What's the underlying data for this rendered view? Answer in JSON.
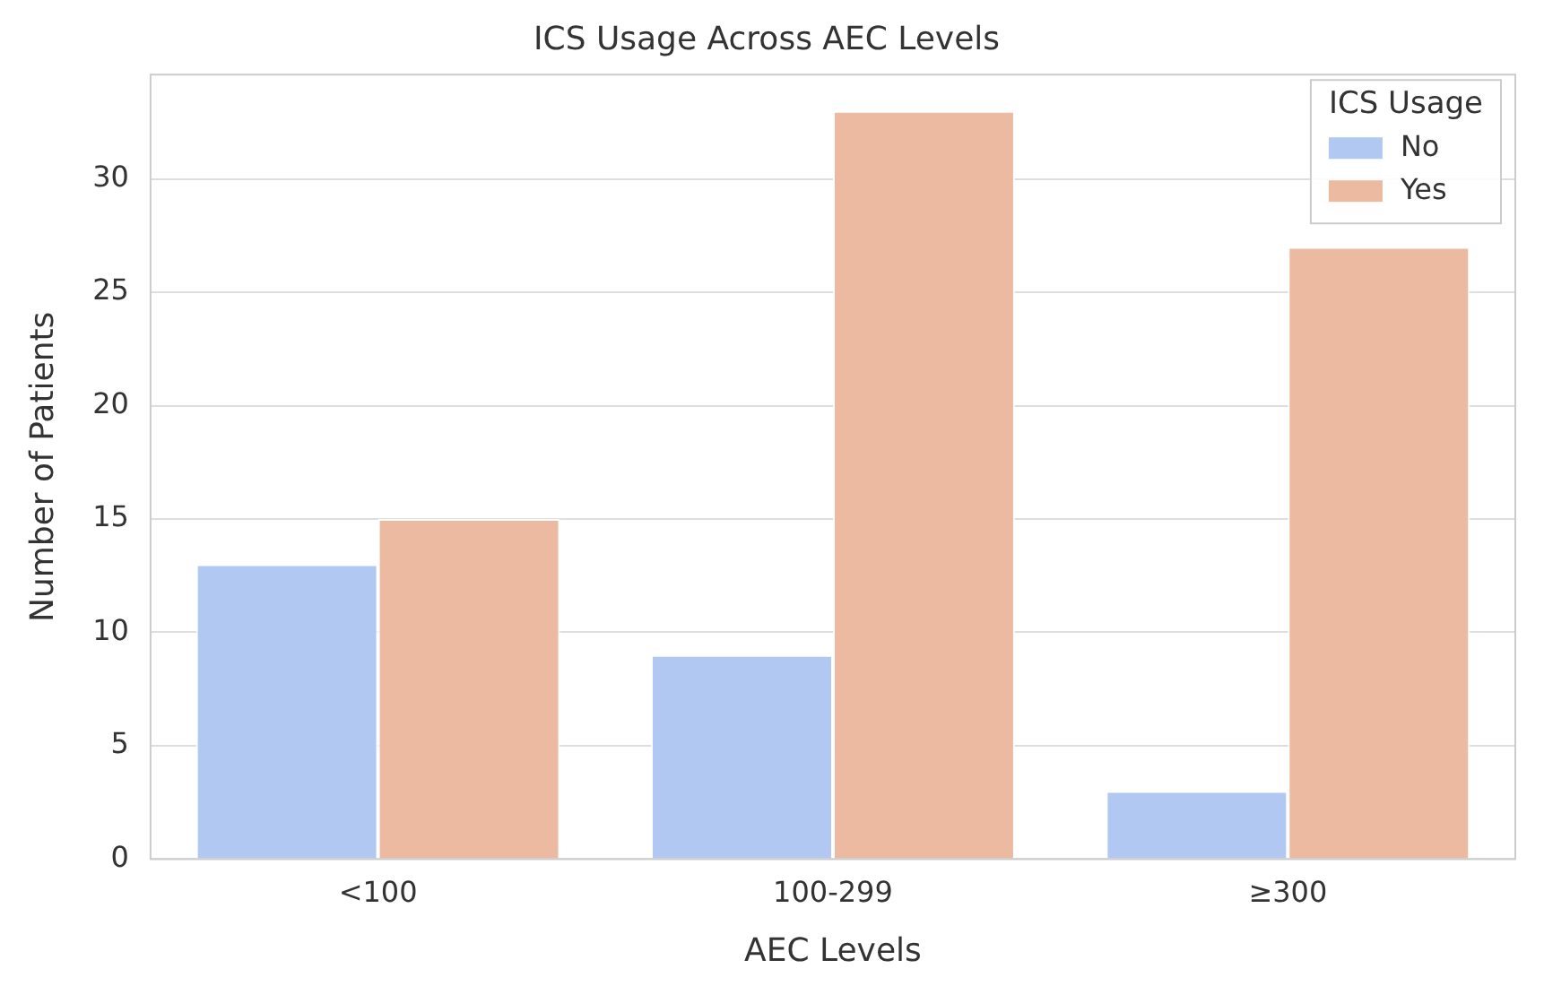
{
  "chart_data": {
    "type": "bar",
    "title": "ICS Usage Across AEC Levels",
    "xlabel": "AEC Levels",
    "ylabel": "Number of Patients",
    "legend_title": "ICS Usage",
    "categories": [
      "<100",
      "100-299",
      "≥300"
    ],
    "series": [
      {
        "name": "No",
        "color": "#b0c8f2",
        "values": [
          13,
          9,
          3
        ]
      },
      {
        "name": "Yes",
        "color": "#ecbaa0",
        "values": [
          15,
          33,
          27
        ]
      }
    ],
    "ylim": [
      0,
      34.6
    ],
    "yticks": [
      0,
      5,
      10,
      15,
      20,
      25,
      30
    ],
    "grid": "y",
    "legend": "top right"
  }
}
